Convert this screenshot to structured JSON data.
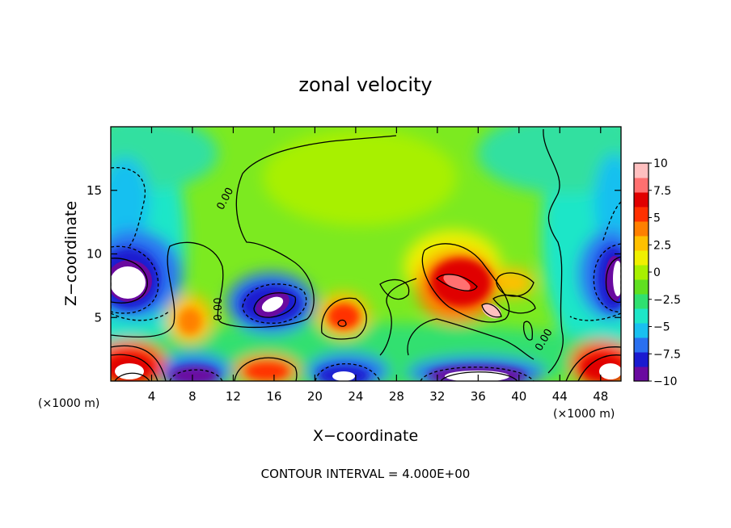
{
  "chart_data": {
    "type": "heatmap",
    "title": "zonal velocity",
    "xlabel": "X−coordinate",
    "ylabel": "Z−coordinate",
    "x_unit_left": "(×1000 m)",
    "x_unit_right": "(×1000 m)",
    "footer": "CONTOUR INTERVAL = 4.000E+00",
    "xlim": [
      0,
      50
    ],
    "ylim": [
      0,
      20
    ],
    "x_ticks": [
      4,
      8,
      12,
      16,
      20,
      24,
      28,
      32,
      36,
      40,
      44,
      48
    ],
    "y_ticks": [
      5,
      10,
      15
    ],
    "colorbar": {
      "min": -10,
      "max": 10,
      "tick_values": [
        10,
        7.5,
        5,
        2.5,
        0,
        -2.5,
        -5,
        -7.5,
        -10
      ],
      "tick_labels": [
        "10",
        "7.5",
        "5",
        "2.5",
        "0",
        "−2.5",
        "−5",
        "−7.5",
        "−10"
      ],
      "colors": [
        "#6a0aa0",
        "#1a1ad0",
        "#2a70f0",
        "#19c0f0",
        "#1ee6c8",
        "#30e070",
        "#60e020",
        "#a8f000",
        "#f0f000",
        "#ffc000",
        "#ff8000",
        "#ff3000",
        "#e00000",
        "#ff7070",
        "#ffc0c0"
      ]
    },
    "contour_labels": [
      "0.00",
      "0.00",
      "0.00"
    ],
    "field_features": [
      {
        "x": 1.0,
        "z": 8.3,
        "value": -15
      },
      {
        "x": 49.4,
        "z": 8.3,
        "value": -15
      },
      {
        "x": 15.4,
        "z": 7.4,
        "value": -15
      },
      {
        "x": 8.0,
        "z": 5.2,
        "value": 6
      },
      {
        "x": 22.3,
        "z": 5.5,
        "value": 7
      },
      {
        "x": 33.7,
        "z": 8.2,
        "value": 9
      },
      {
        "x": 37.4,
        "z": 6.0,
        "value": 11
      },
      {
        "x": 38.9,
        "z": 8.0,
        "value": 4
      },
      {
        "x": 1.5,
        "z": 1.0,
        "value": 12
      },
      {
        "x": 48.0,
        "z": 1.0,
        "value": 11
      },
      {
        "x": 8.5,
        "z": 0.3,
        "value": -11
      },
      {
        "x": 15.5,
        "z": 1.0,
        "value": 7
      },
      {
        "x": 22.5,
        "z": 0.6,
        "value": -13
      },
      {
        "x": 37.0,
        "z": 0.7,
        "value": -13
      },
      {
        "x": 1.8,
        "z": 14.8,
        "value": -4
      },
      {
        "x": 26.0,
        "z": 14.0,
        "value": 1
      },
      {
        "x": 32.0,
        "z": 10.5,
        "value": 3
      }
    ]
  }
}
